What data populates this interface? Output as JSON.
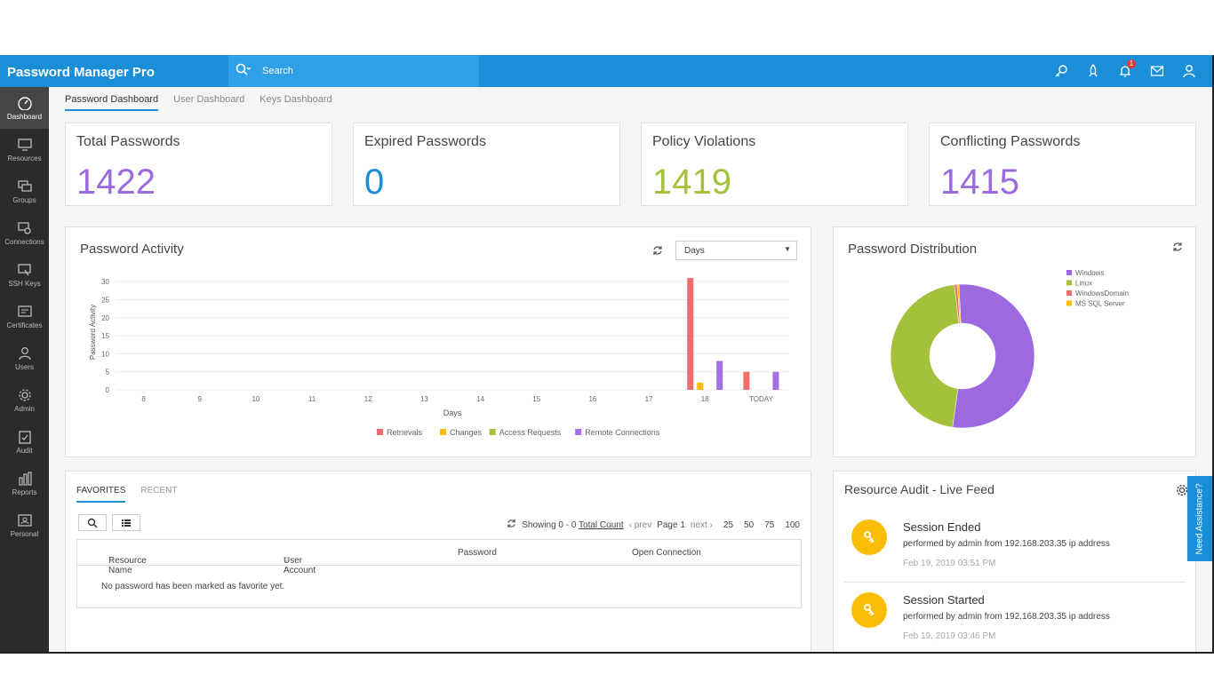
{
  "app": {
    "title": "Password Manager Pro"
  },
  "search": {
    "placeholder": "Search"
  },
  "header": {
    "notification_count": "1"
  },
  "sidebar": {
    "items": [
      {
        "label": "Dashboard"
      },
      {
        "label": "Resources"
      },
      {
        "label": "Groups"
      },
      {
        "label": "Connections"
      },
      {
        "label": "SSH Keys"
      },
      {
        "label": "Certificates"
      },
      {
        "label": "Users"
      },
      {
        "label": "Admin"
      },
      {
        "label": "Audit"
      },
      {
        "label": "Reports"
      },
      {
        "label": "Personal"
      }
    ]
  },
  "tabs": [
    "Password Dashboard",
    "User Dashboard",
    "Keys Dashboard"
  ],
  "stats": [
    {
      "title": "Total Passwords",
      "value": "1422",
      "color": "#9c6ade"
    },
    {
      "title": "Expired Passwords",
      "value": "0",
      "color": "#1a8fd8"
    },
    {
      "title": "Policy Violations",
      "value": "1419",
      "color": "#a3c13b"
    },
    {
      "title": "Conflicting Passwords",
      "value": "1415",
      "color": "#9c6ade"
    }
  ],
  "activity": {
    "title": "Password Activity",
    "period": "Days"
  },
  "distribution": {
    "title": "Password Distribution"
  },
  "chart_data": [
    {
      "type": "bar",
      "ylabel": "Password Activity",
      "xlabel": "Days",
      "categories": [
        "8",
        "9",
        "10",
        "11",
        "12",
        "13",
        "14",
        "15",
        "16",
        "17",
        "18",
        "TODAY"
      ],
      "yticks": [
        0,
        5,
        10,
        15,
        20,
        25,
        30
      ],
      "ylim": [
        0,
        32
      ],
      "grid": true,
      "legend_position": "bottom",
      "series": [
        {
          "name": "Retrievals",
          "color": "#f26c6c",
          "values": [
            0,
            0,
            0,
            0,
            0,
            0,
            0,
            0,
            0,
            0,
            31,
            5
          ]
        },
        {
          "name": "Changes",
          "color": "#fbbc05",
          "values": [
            0,
            0,
            0,
            0,
            0,
            0,
            0,
            0,
            0,
            0,
            2,
            0
          ]
        },
        {
          "name": "Access Requests",
          "color": "#a3c13b",
          "values": [
            0,
            0,
            0,
            0,
            0,
            0,
            0,
            0,
            0,
            0,
            0,
            0
          ]
        },
        {
          "name": "Remote Connections",
          "color": "#a46de6",
          "values": [
            0,
            0,
            0,
            0,
            0,
            0,
            0,
            0,
            0,
            0,
            8,
            5
          ]
        }
      ]
    },
    {
      "type": "pie",
      "donut": true,
      "legend_position": "top-right",
      "slices": [
        {
          "name": "Windows",
          "color": "#9c6ade",
          "value": 53
        },
        {
          "name": "Linux",
          "color": "#a3c13b",
          "value": 46
        },
        {
          "name": "WindowsDomain",
          "color": "#f26c6c",
          "value": 0.6
        },
        {
          "name": "MS SQL Server",
          "color": "#fbbc05",
          "value": 0.4
        }
      ]
    }
  ],
  "favorites": {
    "tabs": [
      "FAVORITES",
      "RECENT"
    ],
    "showing": "Showing 0 - 0",
    "total_count": "Total Count",
    "prev": "prev",
    "page": "Page 1",
    "next": "next",
    "page_sizes": [
      "25",
      "50",
      "75",
      "100"
    ],
    "columns": [
      "Resource Name",
      "User Account",
      "Password",
      "Open Connection"
    ],
    "empty_message": "No password has been marked as favorite yet."
  },
  "audit": {
    "title": "Resource Audit - Live Feed",
    "items": [
      {
        "title": "Session Ended",
        "desc": "performed by admin from 192.168.203.35 ip address",
        "time": "Feb 19, 2019 03:51 PM"
      },
      {
        "title": "Session Started",
        "desc": "performed by admin from 192.168.203.35 ip address",
        "time": "Feb 19, 2019 03:46 PM"
      }
    ]
  },
  "assist": {
    "label": "Need Assistance?"
  }
}
